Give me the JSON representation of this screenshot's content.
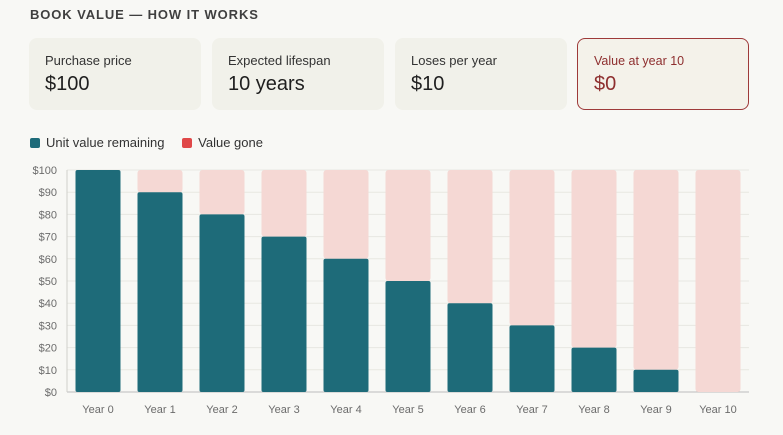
{
  "heading": "BOOK VALUE — HOW IT WORKS",
  "cards": [
    {
      "label": "Purchase price",
      "value": "$100"
    },
    {
      "label": "Expected lifespan",
      "value": "10 years"
    },
    {
      "label": "Loses per year",
      "value": "$10"
    },
    {
      "label": "Value at year 10",
      "value": "$0"
    }
  ],
  "colors": {
    "remaining": "#1e6b79",
    "gone": "#f5d8d4",
    "gone_legend": "#e04848",
    "highlight": "#8e2f2f"
  },
  "chart_data": {
    "type": "bar",
    "stacked": true,
    "categories": [
      "Year 0",
      "Year 1",
      "Year 2",
      "Year 3",
      "Year 4",
      "Year 5",
      "Year 6",
      "Year 7",
      "Year 8",
      "Year 9",
      "Year 10"
    ],
    "series": [
      {
        "name": "Unit value remaining",
        "values": [
          100,
          90,
          80,
          70,
          60,
          50,
          40,
          30,
          20,
          10,
          0
        ]
      },
      {
        "name": "Value gone",
        "values": [
          0,
          10,
          20,
          30,
          40,
          50,
          60,
          70,
          80,
          90,
          100
        ]
      }
    ],
    "yticks": [
      "$0",
      "$10",
      "$20",
      "$30",
      "$40",
      "$50",
      "$60",
      "$70",
      "$80",
      "$90",
      "$100"
    ],
    "ylim": [
      0,
      100
    ],
    "grid": true,
    "legend_position": "top-left"
  }
}
